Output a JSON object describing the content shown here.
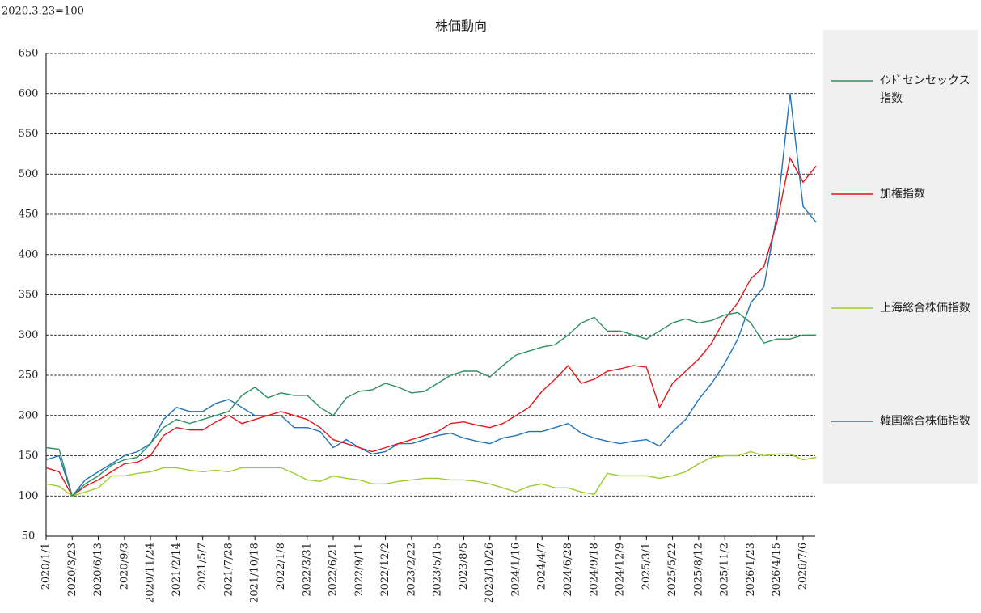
{
  "chart_data": {
    "type": "line",
    "title": "株価動向",
    "note": "2020.3.23=100",
    "categories": [
      "2020/1/1",
      null,
      "2020/3/23",
      null,
      "2020/6/13",
      null,
      "2020/9/3",
      null,
      "2020/11/24",
      null,
      "2021/2/14",
      null,
      "2021/5/7",
      null,
      "2021/7/28",
      null,
      "2021/10/18",
      null,
      "2022/1/8",
      null,
      "2022/3/31",
      null,
      "2022/6/21",
      null,
      "2022/9/11",
      null,
      "2022/12/2",
      null,
      "2023/2/22",
      null,
      "2023/5/15",
      null,
      "2023/8/5",
      null,
      "2023/10/26",
      null,
      "2024/1/16",
      null,
      "2024/4/7",
      null,
      "2024/6/28",
      null,
      "2024/9/18",
      null,
      "2024/12/9",
      null,
      "2025/3/1",
      null,
      "2025/5/22",
      null,
      "2025/8/12",
      null,
      "2025/11/2",
      null,
      "2026/1/23",
      null,
      "2026/4/15",
      null,
      "2026/7/6",
      null
    ],
    "series": [
      {
        "name": "ｲﾝﾄﾞセンセックス指数",
        "color": "#2f9060",
        "values": [
          160,
          158,
          100,
          115,
          125,
          138,
          145,
          148,
          165,
          185,
          195,
          190,
          195,
          200,
          205,
          225,
          235,
          222,
          228,
          225,
          225,
          210,
          200,
          222,
          230,
          232,
          240,
          235,
          228,
          230,
          240,
          250,
          255,
          255,
          248,
          262,
          275,
          280,
          285,
          288,
          300,
          315,
          322,
          305,
          305,
          300,
          295,
          305,
          315,
          320,
          315,
          318,
          325,
          328,
          315,
          290,
          295,
          295,
          300,
          300
        ]
      },
      {
        "name": "加権指数",
        "color": "#e3171c",
        "values": [
          135,
          130,
          100,
          112,
          120,
          130,
          140,
          142,
          150,
          175,
          185,
          182,
          182,
          192,
          200,
          190,
          195,
          200,
          205,
          200,
          195,
          185,
          170,
          165,
          160,
          155,
          160,
          165,
          170,
          175,
          180,
          190,
          192,
          188,
          185,
          190,
          200,
          210,
          230,
          245,
          262,
          240,
          245,
          255,
          258,
          262,
          260,
          210,
          240,
          255,
          270,
          290,
          320,
          340,
          370,
          385,
          440,
          520,
          490,
          510
        ]
      },
      {
        "name": "上海総合株価指数",
        "color": "#9ccc2c",
        "values": [
          115,
          112,
          100,
          105,
          110,
          125,
          125,
          128,
          130,
          135,
          135,
          132,
          130,
          132,
          130,
          135,
          135,
          135,
          135,
          128,
          120,
          118,
          125,
          122,
          120,
          115,
          115,
          118,
          120,
          122,
          122,
          120,
          120,
          118,
          115,
          110,
          105,
          112,
          115,
          110,
          110,
          105,
          102,
          128,
          125,
          125,
          125,
          122,
          125,
          130,
          140,
          148,
          150,
          150,
          155,
          150,
          152,
          152,
          145,
          148
        ]
      },
      {
        "name": "韓国総合株価指数",
        "color": "#1f74bd",
        "values": [
          145,
          150,
          100,
          120,
          130,
          140,
          150,
          155,
          165,
          195,
          210,
          205,
          205,
          215,
          220,
          210,
          200,
          200,
          200,
          185,
          185,
          180,
          160,
          170,
          160,
          152,
          155,
          165,
          165,
          170,
          175,
          178,
          172,
          168,
          165,
          172,
          175,
          180,
          180,
          185,
          190,
          178,
          172,
          168,
          165,
          168,
          170,
          162,
          180,
          195,
          220,
          240,
          265,
          295,
          340,
          360,
          450,
          600,
          460,
          440
        ]
      }
    ],
    "ylim": [
      50,
      650
    ],
    "yticks": [
      50,
      100,
      150,
      200,
      250,
      300,
      350,
      400,
      450,
      500,
      550,
      600,
      650
    ],
    "grid": true
  }
}
